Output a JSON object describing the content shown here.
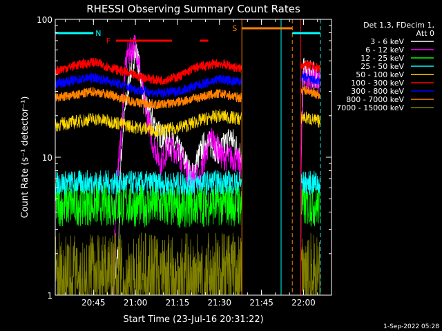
{
  "chart_data": {
    "type": "line",
    "title": "RHESSI Observing Summary Count Rates",
    "xlabel": "Start Time (23-Jul-16 20:31:22)",
    "ylabel": "Count Rate (s⁻¹ detector⁻¹)",
    "yscale": "log",
    "xlim": [
      "20:31:22",
      "22:10:00"
    ],
    "ylim": [
      1,
      100
    ],
    "x_ticks": [
      "20:45",
      "21:00",
      "21:15",
      "21:30",
      "21:45",
      "22:00"
    ],
    "y_ticks": [
      "1",
      "10",
      "100"
    ],
    "legend_title": [
      "Det 1,3, FDecim 1,",
      "Att 0"
    ],
    "legend_position": "right",
    "footer": "1-Sep-2022 05:28",
    "annotations": [
      {
        "label": "N",
        "color": "#00ffff",
        "x_start": "20:31",
        "x_end": "20:45"
      },
      {
        "label": "F",
        "color": "#ff0000",
        "x_start": "20:53",
        "x_end": "21:13"
      },
      {
        "label": "",
        "color": "#ff0000",
        "x_start": "21:23",
        "x_end": "21:26"
      },
      {
        "label": "S",
        "color": "#ff8000",
        "x_start": "21:38",
        "x_end": "21:56"
      },
      {
        "label": "",
        "color": "#00ffff",
        "x_start": "21:56",
        "x_end": "22:06"
      }
    ],
    "vertical_lines": [
      {
        "time": "21:38",
        "color": "#ff8000",
        "style": "solid"
      },
      {
        "time": "21:52",
        "color": "#00ffff",
        "style": "solid"
      },
      {
        "time": "21:56",
        "color": "#ff8000",
        "style": "dashed"
      },
      {
        "time": "21:59",
        "color": "#ff0000",
        "style": "solid"
      },
      {
        "time": "22:06",
        "color": "#00ffff",
        "style": "dashed"
      }
    ],
    "data_gaps": [
      [
        "21:38",
        "21:59"
      ],
      [
        "22:06",
        "22:10"
      ]
    ],
    "series": [
      {
        "name": "3 - 6 keV",
        "color": "#ffffff",
        "points": [
          [
            "20:31",
            0
          ],
          [
            "20:50",
            0
          ],
          [
            "20:54",
            2.0
          ],
          [
            "20:57",
            28
          ],
          [
            "21:00",
            60
          ],
          [
            "21:03",
            25
          ],
          [
            "21:08",
            15
          ],
          [
            "21:12",
            13
          ],
          [
            "21:16",
            11
          ],
          [
            "21:20",
            7
          ],
          [
            "21:25",
            13
          ],
          [
            "21:30",
            11
          ],
          [
            "21:34",
            14
          ],
          [
            "21:37",
            11
          ],
          [
            "21:59",
            0
          ],
          [
            "22:00",
            42
          ],
          [
            "22:06",
            38
          ]
        ]
      },
      {
        "name": "6 - 12 keV",
        "color": "#ff00ff",
        "points": [
          [
            "20:31",
            0
          ],
          [
            "20:52",
            0
          ],
          [
            "20:55",
            14
          ],
          [
            "20:57",
            55
          ],
          [
            "21:00",
            65
          ],
          [
            "21:03",
            25
          ],
          [
            "21:06",
            13
          ],
          [
            "21:09",
            9
          ],
          [
            "21:12",
            12
          ],
          [
            "21:15",
            11
          ],
          [
            "21:19",
            7.5
          ],
          [
            "21:23",
            7
          ],
          [
            "21:27",
            14
          ],
          [
            "21:31",
            10
          ],
          [
            "21:35",
            10
          ],
          [
            "21:37",
            9
          ],
          [
            "21:59",
            0
          ],
          [
            "22:00",
            38
          ],
          [
            "22:06",
            35
          ]
        ]
      },
      {
        "name": "12 - 25 keV",
        "color": "#00ff00",
        "points": [
          [
            "20:31",
            4.5
          ],
          [
            "20:45",
            4.6
          ],
          [
            "21:00",
            4.5
          ],
          [
            "21:15",
            4.4
          ],
          [
            "21:30",
            4.6
          ],
          [
            "21:37",
            4.5
          ],
          [
            "22:00",
            4.5
          ],
          [
            "22:06",
            4.5
          ]
        ]
      },
      {
        "name": "25 - 50 keV",
        "color": "#00ffff",
        "points": [
          [
            "20:31",
            6.5
          ],
          [
            "20:45",
            6.6
          ],
          [
            "21:00",
            6.5
          ],
          [
            "21:15",
            6.4
          ],
          [
            "21:30",
            6.6
          ],
          [
            "21:37",
            6.5
          ],
          [
            "22:00",
            6.5
          ],
          [
            "22:06",
            6.5
          ]
        ]
      },
      {
        "name": "50 - 100 keV",
        "color": "#ffd700",
        "points": [
          [
            "20:31",
            17
          ],
          [
            "20:38",
            18
          ],
          [
            "20:45",
            19
          ],
          [
            "20:52",
            18
          ],
          [
            "21:00",
            16.5
          ],
          [
            "21:10",
            15.5
          ],
          [
            "21:18",
            17
          ],
          [
            "21:25",
            19
          ],
          [
            "21:30",
            20
          ],
          [
            "21:37",
            19
          ],
          [
            "22:00",
            19.5
          ],
          [
            "22:06",
            18
          ]
        ]
      },
      {
        "name": "100 - 300 keV",
        "color": "#ff0000",
        "points": [
          [
            "20:31",
            42
          ],
          [
            "20:38",
            46
          ],
          [
            "20:45",
            49
          ],
          [
            "20:52",
            44
          ],
          [
            "21:00",
            39
          ],
          [
            "21:08",
            36
          ],
          [
            "21:15",
            38
          ],
          [
            "21:22",
            45
          ],
          [
            "21:30",
            48
          ],
          [
            "21:37",
            44
          ],
          [
            "22:00",
            47
          ],
          [
            "22:06",
            44
          ]
        ]
      },
      {
        "name": "300 - 800 keV",
        "color": "#0000ff",
        "points": [
          [
            "20:31",
            34
          ],
          [
            "20:38",
            36
          ],
          [
            "20:45",
            38
          ],
          [
            "20:52",
            35
          ],
          [
            "21:00",
            31
          ],
          [
            "21:08",
            29
          ],
          [
            "21:15",
            30
          ],
          [
            "21:22",
            33
          ],
          [
            "21:30",
            37
          ],
          [
            "21:37",
            35
          ],
          [
            "22:00",
            38
          ],
          [
            "22:06",
            35
          ]
        ]
      },
      {
        "name": "800 - 7000 keV",
        "color": "#ff8000",
        "points": [
          [
            "20:31",
            27
          ],
          [
            "20:38",
            28
          ],
          [
            "20:45",
            30
          ],
          [
            "20:52",
            28
          ],
          [
            "21:00",
            25
          ],
          [
            "21:08",
            24
          ],
          [
            "21:15",
            25
          ],
          [
            "21:22",
            27
          ],
          [
            "21:30",
            29
          ],
          [
            "21:37",
            27
          ],
          [
            "22:00",
            31
          ],
          [
            "22:06",
            28
          ]
        ]
      },
      {
        "name": "7000 - 15000 keV",
        "color": "#808000",
        "points": [
          [
            "20:31",
            1.6
          ],
          [
            "20:45",
            1.6
          ],
          [
            "21:00",
            1.6
          ],
          [
            "21:15",
            1.6
          ],
          [
            "21:30",
            1.6
          ],
          [
            "21:37",
            1.6
          ],
          [
            "22:00",
            1.6
          ],
          [
            "22:06",
            1.6
          ]
        ]
      }
    ]
  }
}
